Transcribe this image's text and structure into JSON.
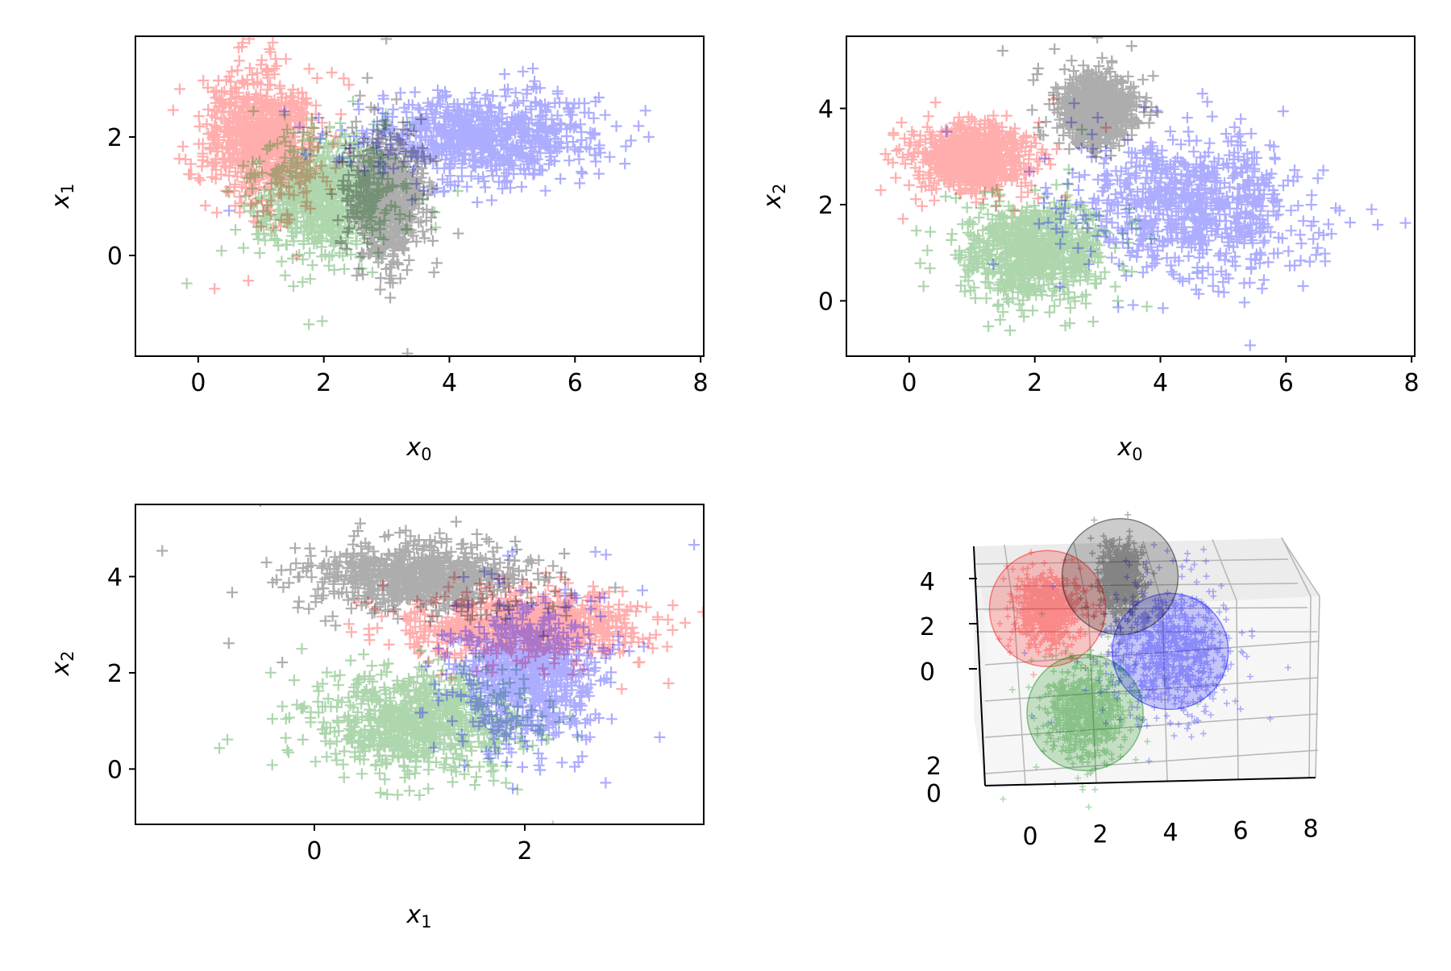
{
  "colors": {
    "red": "#ff0000",
    "green": "#008000",
    "blue": "#0000ff",
    "black": "#000000"
  },
  "chart_data": [
    {
      "type": "scatter",
      "marker": "plus",
      "xlabel_main": "x",
      "xlabel_sub": "0",
      "ylabel_main": "x",
      "ylabel_sub": "1",
      "xlim": [
        -1,
        8.05
      ],
      "ylim": [
        -1.7,
        3.7
      ],
      "xticks": [
        "0",
        "2",
        "4",
        "6",
        "8"
      ],
      "xtick_values": [
        0,
        2,
        4,
        6,
        8
      ],
      "yticks": [
        "0",
        "2"
      ],
      "ytick_values": [
        0,
        2
      ],
      "series": [
        {
          "color": "red",
          "x_center": 1.0,
          "y_center": 2.0,
          "x_sd": 0.45,
          "y_sd": 0.55,
          "count": 1000
        },
        {
          "color": "green",
          "x_center": 2.0,
          "y_center": 1.0,
          "x_sd": 0.55,
          "y_sd": 0.5,
          "count": 1000
        },
        {
          "color": "blue",
          "x_center": 4.5,
          "y_center": 2.0,
          "x_sd": 0.9,
          "y_sd": 0.35,
          "count": 1000
        },
        {
          "color": "black",
          "x_center": 3.0,
          "y_center": 1.0,
          "x_sd": 0.28,
          "y_sd": 0.5,
          "count": 1000
        }
      ]
    },
    {
      "type": "scatter",
      "marker": "plus",
      "xlabel_main": "x",
      "xlabel_sub": "0",
      "ylabel_main": "x",
      "ylabel_sub": "2",
      "xlim": [
        -1,
        8.05
      ],
      "ylim": [
        -1.15,
        5.5
      ],
      "xticks": [
        "0",
        "2",
        "4",
        "6",
        "8"
      ],
      "xtick_values": [
        0,
        2,
        4,
        6,
        8
      ],
      "yticks": [
        "0",
        "2",
        "4"
      ],
      "ytick_values": [
        0,
        2,
        4
      ],
      "series": [
        {
          "color": "red",
          "x_center": 1.0,
          "y_center": 3.0,
          "x_sd": 0.45,
          "y_sd": 0.35,
          "count": 1000
        },
        {
          "color": "green",
          "x_center": 2.0,
          "y_center": 1.0,
          "x_sd": 0.55,
          "y_sd": 0.5,
          "count": 1000
        },
        {
          "color": "blue",
          "x_center": 4.5,
          "y_center": 2.0,
          "x_sd": 0.9,
          "y_sd": 0.7,
          "count": 1000
        },
        {
          "color": "black",
          "x_center": 3.0,
          "y_center": 4.0,
          "x_sd": 0.28,
          "y_sd": 0.35,
          "count": 1000
        }
      ]
    },
    {
      "type": "scatter",
      "marker": "plus",
      "xlabel_main": "x",
      "xlabel_sub": "1",
      "ylabel_main": "x",
      "ylabel_sub": "2",
      "xlim": [
        -1.7,
        3.7
      ],
      "ylim": [
        -1.15,
        5.5
      ],
      "xticks": [
        "0",
        "2"
      ],
      "xtick_values": [
        0,
        2
      ],
      "yticks": [
        "0",
        "2",
        "4"
      ],
      "ytick_values": [
        0,
        2,
        4
      ],
      "series": [
        {
          "color": "red",
          "x_center": 2.0,
          "y_center": 3.0,
          "x_sd": 0.55,
          "y_sd": 0.35,
          "count": 1000
        },
        {
          "color": "green",
          "x_center": 1.0,
          "y_center": 1.0,
          "x_sd": 0.5,
          "y_sd": 0.5,
          "count": 1000
        },
        {
          "color": "blue",
          "x_center": 2.0,
          "y_center": 2.0,
          "x_sd": 0.35,
          "y_sd": 0.7,
          "count": 1000
        },
        {
          "color": "black",
          "x_center": 1.0,
          "y_center": 4.0,
          "x_sd": 0.5,
          "y_sd": 0.35,
          "count": 1000
        }
      ]
    },
    {
      "type": "scatter3d",
      "marker": "plus",
      "xticks": [
        "0",
        "2",
        "4",
        "6",
        "8"
      ],
      "xtick_values": [
        0,
        2,
        4,
        6,
        8
      ],
      "zticks": [
        "0",
        "2",
        "4"
      ],
      "ztick_values": [
        0,
        2,
        4
      ],
      "yticks": [
        "0",
        "2"
      ],
      "ytick_values": [
        0,
        2
      ],
      "spheres": [
        {
          "color": "red",
          "center": [
            1.0,
            2.0,
            3.0
          ]
        },
        {
          "color": "green",
          "center": [
            2.0,
            1.0,
            1.0
          ]
        },
        {
          "color": "blue",
          "center": [
            4.5,
            2.0,
            2.0
          ]
        },
        {
          "color": "black",
          "center": [
            3.0,
            1.0,
            4.0
          ]
        }
      ]
    }
  ]
}
